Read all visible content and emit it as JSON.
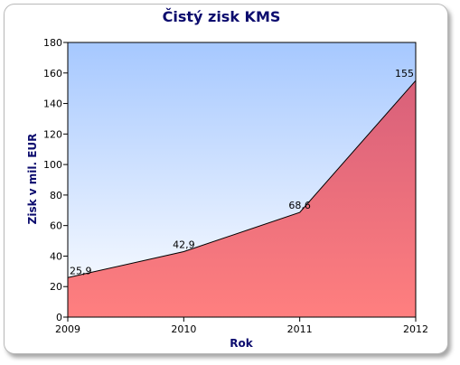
{
  "chart_data": {
    "type": "area",
    "title": "Čistý zisk KMS",
    "xlabel": "Rok",
    "ylabel": "Zisk v mil. EUR",
    "x": [
      "2009",
      "2010",
      "2011",
      "2012"
    ],
    "series": [
      {
        "values": [
          25.9,
          42.9,
          68.6,
          155
        ],
        "labels": [
          "25,9",
          "42,9",
          "68,6",
          "155"
        ]
      }
    ],
    "ylim": [
      0,
      180
    ],
    "yticks": [
      0,
      20,
      40,
      60,
      80,
      100,
      120,
      140,
      160,
      180
    ],
    "ytick_labels": [
      "0",
      "20",
      "40",
      "60",
      "80",
      "100",
      "120",
      "140",
      "160",
      "180"
    ],
    "grid": false,
    "legend": "none",
    "colors": {
      "plot_bg_top": "#a6c8ff",
      "plot_bg_bottom": "#ffffff",
      "area_top": "#d8607a",
      "area_bottom": "#ff7f7f",
      "line": "#000000",
      "title": "#0c0c6e"
    }
  }
}
